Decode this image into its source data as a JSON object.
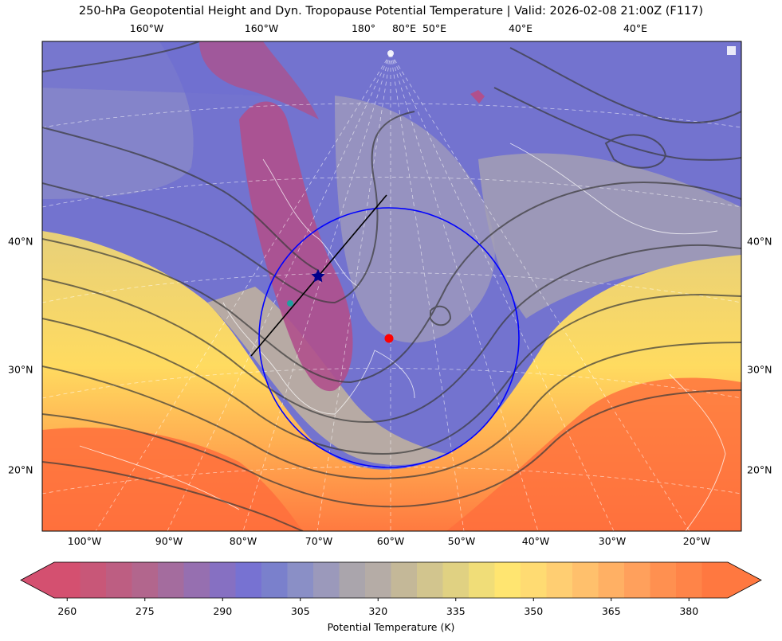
{
  "title": "250-hPa Geopotential Height and Dyn. Tropopause Potential Temperature   |  Valid: 2026-02-08 21:00Z (F117)",
  "map": {
    "top_labels": [
      "160°W",
      "160°W",
      "180°",
      "80°E",
      "50°E",
      "40°E",
      "40°E"
    ],
    "bottom_labels": [
      "100°W",
      "90°W",
      "80°W",
      "70°W",
      "60°W",
      "50°W",
      "40°W",
      "30°W",
      "20°W"
    ],
    "left_labels": [
      "40°N",
      "30°N",
      "20°N"
    ],
    "right_labels": [
      "40°N",
      "30°N",
      "20°N"
    ],
    "colors": {
      "cold": "#c84a8e",
      "mid_blue": "#6f6fd0",
      "neutral": "#a6a0b0",
      "warm_yellow": "#f3e078",
      "hot": "#ff6a3a",
      "circle": "#0000ff",
      "cross_section_line": "#000000",
      "center_marker": "#ff0000",
      "star_marker": "#00008b",
      "teal_marker": "#20a0a0"
    },
    "markers": [
      {
        "name": "center-dot",
        "lon": -60.5,
        "lat": 32.0
      },
      {
        "name": "star",
        "lon": -70.0,
        "lat": 37.5
      },
      {
        "name": "teal-dot",
        "lon": -73.5,
        "lat": 35.0
      }
    ]
  },
  "colorbar": {
    "title": "Potential Temperature (K)",
    "ticks": [
      "260",
      "275",
      "290",
      "305",
      "320",
      "335",
      "350",
      "365",
      "380"
    ],
    "min": 257.5,
    "max": 387.5,
    "step": 5,
    "colors": [
      "#d45070",
      "#c85778",
      "#bd5e82",
      "#b2668d",
      "#a46c9e",
      "#966fb0",
      "#8670c2",
      "#7772d2",
      "#7a80cc",
      "#8a8fc6",
      "#9b99bb",
      "#aaa5ac",
      "#b5aca6",
      "#c4b898",
      "#d2c58e",
      "#e0d182",
      "#f0dd78",
      "#ffe570",
      "#ffdb72",
      "#ffce72",
      "#ffc06c",
      "#ffb064",
      "#ffa05c",
      "#ff9050",
      "#ff8448",
      "#ff7840"
    ]
  }
}
